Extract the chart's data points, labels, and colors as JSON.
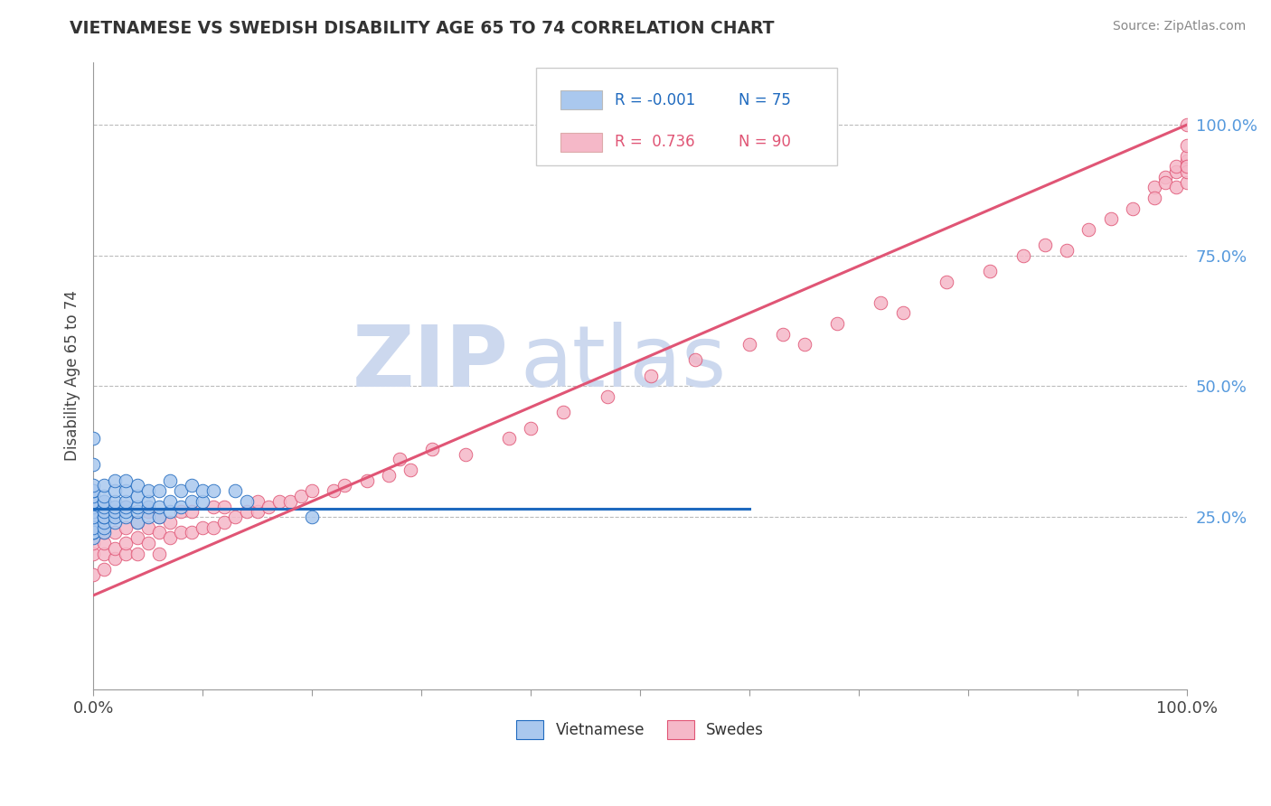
{
  "title": "VIETNAMESE VS SWEDISH DISABILITY AGE 65 TO 74 CORRELATION CHART",
  "source_text": "Source: ZipAtlas.com",
  "ylabel": "Disability Age 65 to 74",
  "legend_r_n": [
    {
      "r": "R = -0.001",
      "n": "N = 75"
    },
    {
      "r": "R =  0.736",
      "n": "N = 90"
    }
  ],
  "viet_color": "#aac8ee",
  "swede_color": "#f5b8c8",
  "viet_line_color": "#1f6abf",
  "swede_line_color": "#e05575",
  "grid_color": "#bbbbbb",
  "background_color": "#ffffff",
  "title_color": "#333333",
  "right_tick_color": "#5599dd",
  "xlim": [
    0.0,
    1.0
  ],
  "ylim": [
    -0.08,
    1.12
  ],
  "yticks": [
    0.25,
    0.5,
    0.75,
    1.0
  ],
  "watermark_text1": "ZIP",
  "watermark_text2": "atlas",
  "watermark_color": "#ccd8ee",
  "viet_scatter_x": [
    0.0,
    0.0,
    0.0,
    0.0,
    0.0,
    0.0,
    0.0,
    0.0,
    0.0,
    0.0,
    0.0,
    0.0,
    0.0,
    0.0,
    0.0,
    0.0,
    0.0,
    0.0,
    0.0,
    0.0,
    0.0,
    0.0,
    0.0,
    0.0,
    0.0,
    0.0,
    0.01,
    0.01,
    0.01,
    0.01,
    0.01,
    0.01,
    0.01,
    0.01,
    0.01,
    0.01,
    0.01,
    0.02,
    0.02,
    0.02,
    0.02,
    0.02,
    0.02,
    0.02,
    0.03,
    0.03,
    0.03,
    0.03,
    0.03,
    0.03,
    0.04,
    0.04,
    0.04,
    0.04,
    0.04,
    0.05,
    0.05,
    0.05,
    0.05,
    0.06,
    0.06,
    0.06,
    0.07,
    0.07,
    0.07,
    0.08,
    0.08,
    0.09,
    0.09,
    0.1,
    0.1,
    0.11,
    0.13,
    0.14,
    0.2
  ],
  "viet_scatter_y": [
    0.21,
    0.22,
    0.22,
    0.23,
    0.24,
    0.24,
    0.24,
    0.25,
    0.25,
    0.25,
    0.26,
    0.26,
    0.27,
    0.27,
    0.28,
    0.28,
    0.28,
    0.29,
    0.3,
    0.3,
    0.31,
    0.22,
    0.23,
    0.25,
    0.35,
    0.4,
    0.22,
    0.23,
    0.24,
    0.25,
    0.25,
    0.26,
    0.27,
    0.28,
    0.28,
    0.29,
    0.31,
    0.24,
    0.25,
    0.26,
    0.27,
    0.28,
    0.3,
    0.32,
    0.25,
    0.26,
    0.27,
    0.28,
    0.3,
    0.32,
    0.24,
    0.26,
    0.27,
    0.29,
    0.31,
    0.25,
    0.27,
    0.28,
    0.3,
    0.25,
    0.27,
    0.3,
    0.26,
    0.28,
    0.32,
    0.27,
    0.3,
    0.28,
    0.31,
    0.28,
    0.3,
    0.3,
    0.3,
    0.28,
    0.25
  ],
  "swede_scatter_x": [
    0.0,
    0.0,
    0.0,
    0.0,
    0.0,
    0.01,
    0.01,
    0.01,
    0.01,
    0.01,
    0.02,
    0.02,
    0.02,
    0.02,
    0.03,
    0.03,
    0.03,
    0.03,
    0.04,
    0.04,
    0.04,
    0.05,
    0.05,
    0.05,
    0.06,
    0.06,
    0.06,
    0.07,
    0.07,
    0.08,
    0.08,
    0.09,
    0.09,
    0.1,
    0.11,
    0.11,
    0.12,
    0.12,
    0.13,
    0.14,
    0.15,
    0.15,
    0.16,
    0.17,
    0.18,
    0.19,
    0.2,
    0.22,
    0.23,
    0.25,
    0.27,
    0.28,
    0.29,
    0.31,
    0.34,
    0.38,
    0.4,
    0.43,
    0.47,
    0.51,
    0.55,
    0.6,
    0.63,
    0.65,
    0.68,
    0.72,
    0.74,
    0.78,
    0.82,
    0.85,
    0.87,
    0.89,
    0.91,
    0.93,
    0.95,
    0.97,
    0.97,
    0.98,
    0.98,
    0.99,
    0.99,
    0.99,
    1.0,
    1.0,
    1.0,
    1.0,
    1.0,
    1.0,
    1.0,
    1.0
  ],
  "swede_scatter_y": [
    0.14,
    0.18,
    0.2,
    0.22,
    0.23,
    0.15,
    0.18,
    0.2,
    0.22,
    0.25,
    0.17,
    0.19,
    0.22,
    0.25,
    0.18,
    0.2,
    0.23,
    0.27,
    0.18,
    0.21,
    0.24,
    0.2,
    0.23,
    0.26,
    0.18,
    0.22,
    0.25,
    0.21,
    0.24,
    0.22,
    0.26,
    0.22,
    0.26,
    0.23,
    0.23,
    0.27,
    0.24,
    0.27,
    0.25,
    0.26,
    0.26,
    0.28,
    0.27,
    0.28,
    0.28,
    0.29,
    0.3,
    0.3,
    0.31,
    0.32,
    0.33,
    0.36,
    0.34,
    0.38,
    0.37,
    0.4,
    0.42,
    0.45,
    0.48,
    0.52,
    0.55,
    0.58,
    0.6,
    0.58,
    0.62,
    0.66,
    0.64,
    0.7,
    0.72,
    0.75,
    0.77,
    0.76,
    0.8,
    0.82,
    0.84,
    0.88,
    0.86,
    0.9,
    0.89,
    0.91,
    0.92,
    0.88,
    0.93,
    0.92,
    0.89,
    0.91,
    0.94,
    0.96,
    0.92,
    1.0
  ],
  "viet_line_x": [
    0.0,
    0.6
  ],
  "viet_line_y": [
    0.265,
    0.265
  ],
  "swede_line_x": [
    0.0,
    1.0
  ],
  "swede_line_y": [
    0.1,
    1.0
  ]
}
